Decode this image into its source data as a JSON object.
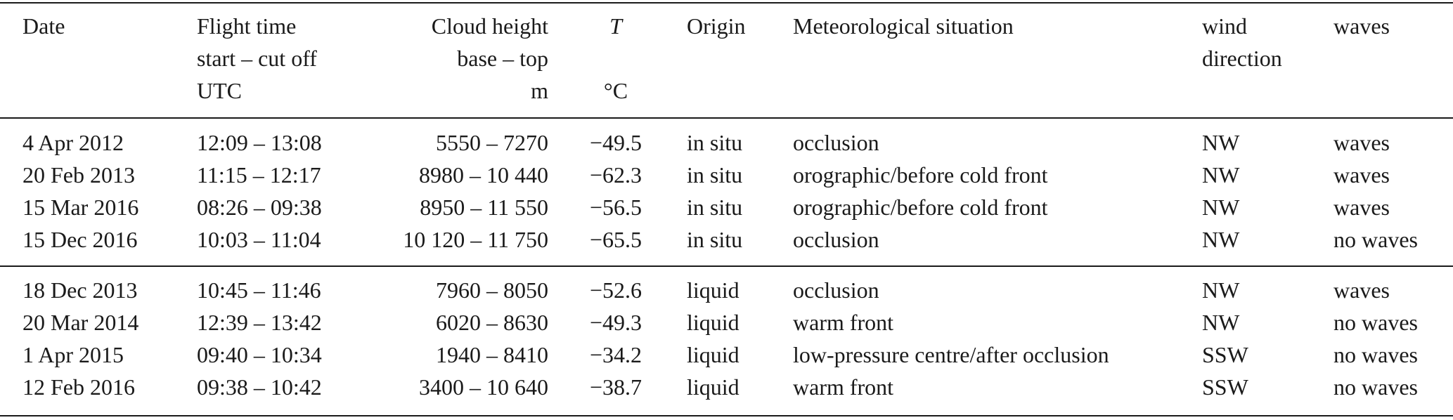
{
  "headers": {
    "date": [
      "Date"
    ],
    "flight_time": [
      "Flight time",
      "start – cut off",
      "UTC"
    ],
    "cloud_height": [
      "Cloud height",
      "base – top",
      "m"
    ],
    "temperature": [
      "T",
      "",
      "°C"
    ],
    "origin": [
      "Origin"
    ],
    "met": [
      "Meteorological situation"
    ],
    "wind": [
      "wind",
      "direction"
    ],
    "waves": [
      "waves"
    ]
  },
  "groups": [
    {
      "rows": [
        {
          "date": "4 Apr 2012",
          "flight_time": "12:09 – 13:08",
          "cloud_height": "5550 – 7270",
          "temperature": "−49.5",
          "origin": "in situ",
          "met": "occlusion",
          "wind": "NW",
          "waves": "waves"
        },
        {
          "date": "20 Feb 2013",
          "flight_time": "11:15 – 12:17",
          "cloud_height": "8980 – 10 440",
          "temperature": "−62.3",
          "origin": "in situ",
          "met": "orographic/before cold front",
          "wind": "NW",
          "waves": "waves"
        },
        {
          "date": "15 Mar 2016",
          "flight_time": "08:26 – 09:38",
          "cloud_height": "8950 – 11 550",
          "temperature": "−56.5",
          "origin": "in situ",
          "met": "orographic/before cold front",
          "wind": "NW",
          "waves": "waves"
        },
        {
          "date": "15 Dec 2016",
          "flight_time": "10:03 – 11:04",
          "cloud_height": "10 120 – 11 750",
          "temperature": "−65.5",
          "origin": "in situ",
          "met": "occlusion",
          "wind": "NW",
          "waves": "no waves"
        }
      ]
    },
    {
      "rows": [
        {
          "date": "18 Dec 2013",
          "flight_time": "10:45 – 11:46",
          "cloud_height": "7960 – 8050",
          "temperature": "−52.6",
          "origin": "liquid",
          "met": "occlusion",
          "wind": "NW",
          "waves": "waves"
        },
        {
          "date": "20 Mar 2014",
          "flight_time": "12:39 – 13:42",
          "cloud_height": "6020 – 8630",
          "temperature": "−49.3",
          "origin": "liquid",
          "met": "warm front",
          "wind": "NW",
          "waves": "no waves"
        },
        {
          "date": "1 Apr 2015",
          "flight_time": "09:40 – 10:34",
          "cloud_height": "1940 – 8410",
          "temperature": "−34.2",
          "origin": "liquid",
          "met": "low-pressure centre/after occlusion",
          "wind": "SSW",
          "waves": "no waves"
        },
        {
          "date": "12 Feb 2016",
          "flight_time": "09:38 – 10:42",
          "cloud_height": "3400 – 10 640",
          "temperature": "−38.7",
          "origin": "liquid",
          "met": "warm front",
          "wind": "SSW",
          "waves": "no waves"
        }
      ]
    }
  ]
}
